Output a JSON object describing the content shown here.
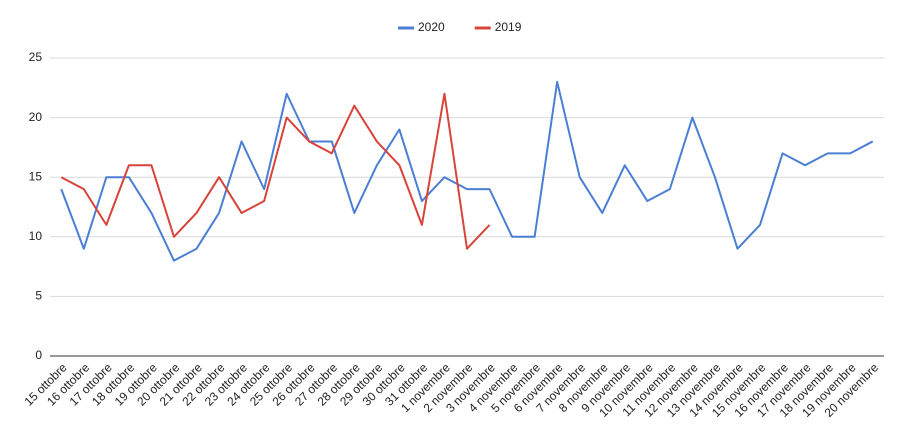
{
  "chart_data": {
    "type": "line",
    "categories": [
      "15 ottobre",
      "16 ottobre",
      "17 ottobre",
      "18 ottobre",
      "19 ottobre",
      "20 ottobre",
      "21 ottobre",
      "22 ottobre",
      "23 ottobre",
      "24 ottobre",
      "25 ottobre",
      "26 ottobre",
      "27 ottobre",
      "28 ottobre",
      "29 ottobre",
      "30 ottobre",
      "31 ottobre",
      "1 novembre",
      "2 novembre",
      "3 novembre",
      "4 novembre",
      "5 novembre",
      "6 novembre",
      "7 novembre",
      "8 novembre",
      "9 novembre",
      "10 novembre",
      "11 novembre",
      "12 novembre",
      "13 novembre",
      "14 novembre",
      "15 novembre",
      "16 novembre",
      "17 novembre",
      "18 novembre",
      "19 novembre",
      "20 novembre"
    ],
    "series": [
      {
        "name": "2020",
        "color": "#4a7fd4",
        "values": [
          14,
          9,
          15,
          15,
          12,
          8,
          9,
          12,
          18,
          14,
          22,
          18,
          18,
          12,
          16,
          19,
          13,
          15,
          14,
          14,
          10,
          10,
          23,
          15,
          12,
          16,
          13,
          14,
          20,
          15,
          9,
          11,
          17,
          16,
          17,
          17,
          18
        ]
      },
      {
        "name": "2019",
        "color": "#d8433a",
        "values": [
          15,
          14,
          11,
          16,
          16,
          10,
          12,
          15,
          12,
          13,
          20,
          18,
          17,
          21,
          18,
          16,
          11,
          22,
          9,
          11,
          null,
          null,
          null,
          null,
          null,
          null,
          null,
          null,
          null,
          null,
          null,
          null,
          null,
          null,
          null,
          null,
          null
        ]
      }
    ],
    "ylim": [
      0,
      25
    ],
    "yticks": [
      0,
      5,
      10,
      15,
      20,
      25
    ],
    "grid": true,
    "legend": "top"
  }
}
